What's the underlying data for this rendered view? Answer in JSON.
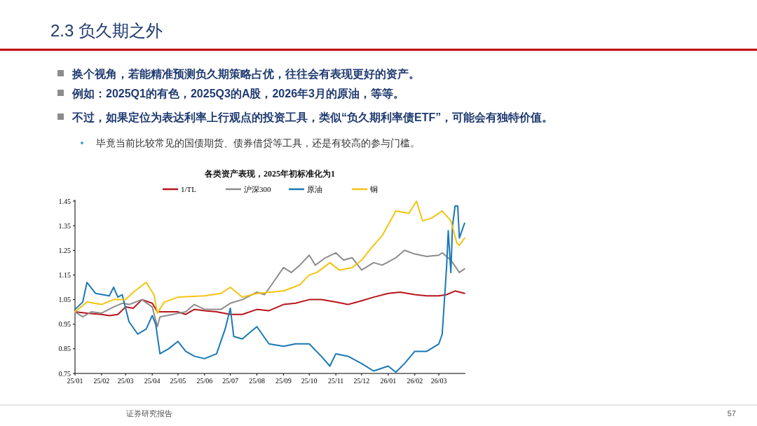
{
  "chart_data": {
    "type": "line",
    "title": "各类资产表现，2025年初标准化为1",
    "annotations": [
      "2.3 负久期之外",
      "换个视角，若能精准预测负久期策略占优，往往会有表现更好的资产。",
      "例如：2025Q1的有色，2025Q3的A股，2026年3月的原油，等等。",
      "不过，如果定位为表达利率上行观点的投资工具，类似“负久期利率债ETF”，可能会有独特价值。",
      "毕竟当前比较常见的国债期货、债券借贷等工具，还是有较高的参与门槛。",
      "证券研究报告",
      "57"
    ],
    "xlim": [
      "2025-01-01",
      "2026-04-01"
    ],
    "xticks": [
      {
        "value": "2025-01-01",
        "label": "25/01"
      },
      {
        "value": "2025-02-01",
        "label": "25/02"
      },
      {
        "value": "2025-03-01",
        "label": "25/03"
      },
      {
        "value": "2025-04-01",
        "label": "25/04"
      },
      {
        "value": "2025-05-01",
        "label": "25/05"
      },
      {
        "value": "2025-06-01",
        "label": "25/06"
      },
      {
        "value": "2025-07-01",
        "label": "25/07"
      },
      {
        "value": "2025-08-01",
        "label": "25/08"
      },
      {
        "value": "2025-09-01",
        "label": "25/09"
      },
      {
        "value": "2025-10-01",
        "label": "25/10"
      },
      {
        "value": "2025-11-01",
        "label": "25/11"
      },
      {
        "value": "2025-12-01",
        "label": "25/12"
      },
      {
        "value": "2026-01-01",
        "label": "26/01"
      },
      {
        "value": "2026-02-01",
        "label": "26/02"
      },
      {
        "value": "2026-03-01",
        "label": "26/03"
      }
    ],
    "ylim": [
      0.75,
      1.45
    ],
    "yticks": [
      0.75,
      0.85,
      0.95,
      1.05,
      1.15,
      1.25,
      1.35,
      1.45
    ],
    "grid": false,
    "legend": "top",
    "series": [
      {
        "name": "1/TL",
        "color": "#b8141c",
        "x": [
          "2025-01-01",
          "2025-01-15",
          "2025-02-01",
          "2025-02-10",
          "2025-02-20",
          "2025-03-01",
          "2025-03-10",
          "2025-03-20",
          "2025-04-01",
          "2025-04-07",
          "2025-04-15",
          "2025-05-01",
          "2025-05-10",
          "2025-05-20",
          "2025-06-01",
          "2025-06-15",
          "2025-07-01",
          "2025-07-15",
          "2025-08-01",
          "2025-08-15",
          "2025-09-01",
          "2025-09-15",
          "2025-10-01",
          "2025-10-15",
          "2025-11-01",
          "2025-11-15",
          "2025-12-01",
          "2025-12-15",
          "2026-01-01",
          "2026-01-15",
          "2026-02-01",
          "2026-02-15",
          "2026-03-01",
          "2026-03-10",
          "2026-03-20",
          "2026-03-31"
        ],
        "values": [
          1.0,
          0.995,
          0.99,
          0.985,
          0.99,
          1.02,
          1.015,
          1.05,
          1.035,
          1.0,
          1.0,
          1.0,
          0.99,
          1.01,
          1.005,
          1.0,
          0.99,
          0.99,
          1.01,
          1.005,
          1.03,
          1.035,
          1.05,
          1.05,
          1.04,
          1.03,
          1.045,
          1.06,
          1.075,
          1.08,
          1.07,
          1.065,
          1.065,
          1.07,
          1.085,
          1.075
        ]
      },
      {
        "name": "沪深300",
        "color": "#8c8c8c",
        "x": [
          "2025-01-01",
          "2025-01-10",
          "2025-01-20",
          "2025-02-01",
          "2025-02-15",
          "2025-02-25",
          "2025-03-05",
          "2025-03-20",
          "2025-04-01",
          "2025-04-07",
          "2025-04-10",
          "2025-04-25",
          "2025-05-10",
          "2025-05-20",
          "2025-06-01",
          "2025-06-20",
          "2025-07-01",
          "2025-07-15",
          "2025-08-01",
          "2025-08-10",
          "2025-08-20",
          "2025-09-01",
          "2025-09-10",
          "2025-09-20",
          "2025-10-01",
          "2025-10-08",
          "2025-10-20",
          "2025-11-01",
          "2025-11-10",
          "2025-11-20",
          "2025-12-01",
          "2025-12-15",
          "2025-12-25",
          "2026-01-10",
          "2026-01-20",
          "2026-02-01",
          "2026-02-15",
          "2026-03-01",
          "2026-03-05",
          "2026-03-15",
          "2026-03-25",
          "2026-03-31"
        ],
        "values": [
          1.0,
          0.98,
          1.0,
          0.995,
          1.02,
          1.035,
          1.03,
          1.05,
          1.02,
          0.94,
          0.98,
          0.99,
          1.0,
          1.03,
          1.01,
          1.01,
          1.035,
          1.05,
          1.08,
          1.07,
          1.12,
          1.18,
          1.16,
          1.19,
          1.23,
          1.19,
          1.22,
          1.24,
          1.21,
          1.22,
          1.17,
          1.2,
          1.19,
          1.22,
          1.25,
          1.235,
          1.225,
          1.23,
          1.24,
          1.21,
          1.16,
          1.175
        ]
      },
      {
        "name": "原油",
        "color": "#1a78b4",
        "x": [
          "2025-01-01",
          "2025-01-10",
          "2025-01-15",
          "2025-01-25",
          "2025-02-10",
          "2025-02-15",
          "2025-02-20",
          "2025-02-25",
          "2025-03-05",
          "2025-03-15",
          "2025-03-25",
          "2025-04-01",
          "2025-04-05",
          "2025-04-10",
          "2025-04-20",
          "2025-05-01",
          "2025-05-10",
          "2025-05-20",
          "2025-06-01",
          "2025-06-15",
          "2025-06-25",
          "2025-07-01",
          "2025-07-05",
          "2025-07-15",
          "2025-07-25",
          "2025-08-01",
          "2025-08-15",
          "2025-09-01",
          "2025-09-15",
          "2025-10-01",
          "2025-10-15",
          "2025-10-25",
          "2025-11-01",
          "2025-11-15",
          "2025-12-01",
          "2025-12-15",
          "2026-01-01",
          "2026-01-10",
          "2026-01-20",
          "2026-02-01",
          "2026-02-15",
          "2026-03-01",
          "2026-03-05",
          "2026-03-10",
          "2026-03-12",
          "2026-03-15",
          "2026-03-17",
          "2026-03-20",
          "2026-03-23",
          "2026-03-25",
          "2026-03-31"
        ],
        "values": [
          1.01,
          1.04,
          1.12,
          1.075,
          1.065,
          1.1,
          1.06,
          1.07,
          0.96,
          0.91,
          0.93,
          0.985,
          0.95,
          0.83,
          0.85,
          0.88,
          0.84,
          0.82,
          0.81,
          0.83,
          0.93,
          1.015,
          0.9,
          0.89,
          0.92,
          0.94,
          0.87,
          0.86,
          0.87,
          0.87,
          0.82,
          0.78,
          0.83,
          0.82,
          0.79,
          0.76,
          0.78,
          0.755,
          0.79,
          0.84,
          0.84,
          0.87,
          0.91,
          1.18,
          1.33,
          1.16,
          1.35,
          1.43,
          1.43,
          1.3,
          1.36
        ]
      },
      {
        "name": "铜",
        "color": "#f2c40f",
        "x": [
          "2025-01-01",
          "2025-01-15",
          "2025-02-01",
          "2025-02-15",
          "2025-03-01",
          "2025-03-10",
          "2025-03-25",
          "2025-04-03",
          "2025-04-07",
          "2025-04-15",
          "2025-05-01",
          "2025-06-01",
          "2025-06-20",
          "2025-07-01",
          "2025-07-15",
          "2025-08-01",
          "2025-09-01",
          "2025-09-20",
          "2025-10-01",
          "2025-10-10",
          "2025-10-25",
          "2025-11-05",
          "2025-11-20",
          "2025-12-01",
          "2025-12-10",
          "2025-12-25",
          "2026-01-10",
          "2026-01-25",
          "2026-02-03",
          "2026-02-10",
          "2026-02-20",
          "2026-03-05",
          "2026-03-15",
          "2026-03-22",
          "2026-03-25",
          "2026-03-31"
        ],
        "values": [
          1.0,
          1.04,
          1.03,
          1.05,
          1.05,
          1.08,
          1.12,
          1.07,
          0.995,
          1.04,
          1.06,
          1.065,
          1.075,
          1.1,
          1.06,
          1.075,
          1.085,
          1.11,
          1.15,
          1.16,
          1.2,
          1.17,
          1.18,
          1.21,
          1.25,
          1.31,
          1.41,
          1.4,
          1.45,
          1.37,
          1.38,
          1.41,
          1.37,
          1.28,
          1.27,
          1.3
        ]
      }
    ]
  }
}
